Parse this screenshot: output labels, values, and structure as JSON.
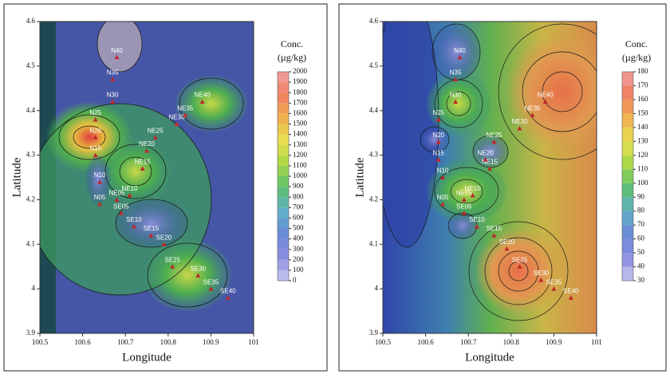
{
  "chart_data": [
    {
      "type": "contour",
      "x_label": "Longitude",
      "y_label": "Latitude",
      "xlim": [
        100.5,
        101
      ],
      "ylim": [
        3.9,
        4.6
      ],
      "xticks": [
        100.5,
        100.6,
        100.7,
        100.8,
        100.9,
        101
      ],
      "yticks": [
        3.9,
        4,
        4.1,
        4.2,
        4.3,
        4.4,
        4.5,
        4.6
      ],
      "colorbar_title": [
        "Conc.",
        "(µg/kg)"
      ],
      "clim": [
        0,
        2000
      ],
      "colorbar_ticks": [
        0,
        100,
        200,
        300,
        400,
        500,
        600,
        700,
        800,
        900,
        1000,
        1100,
        1200,
        1300,
        1400,
        1500,
        1600,
        1700,
        1800,
        1900,
        2000
      ],
      "stations": {
        "names": [
          "N40",
          "N35",
          "N30",
          "N25",
          "N20",
          "N15",
          "N10",
          "N05",
          "NE05",
          "SE05",
          "NE10",
          "NE15",
          "NE20",
          "NE25",
          "NE30",
          "NE35",
          "NE40",
          "SE10",
          "SE15",
          "SE20",
          "SE25",
          "SE30",
          "SE35",
          "SE40"
        ],
        "x": [
          100.68,
          100.67,
          100.67,
          100.63,
          100.63,
          100.63,
          100.64,
          100.64,
          100.68,
          100.69,
          100.71,
          100.74,
          100.75,
          100.77,
          100.82,
          100.84,
          100.88,
          100.72,
          100.76,
          100.79,
          100.81,
          100.87,
          100.9,
          100.94
        ],
        "y": [
          4.52,
          4.47,
          4.42,
          4.38,
          4.34,
          4.3,
          4.24,
          4.19,
          4.2,
          4.17,
          4.21,
          4.27,
          4.31,
          4.34,
          4.37,
          4.39,
          4.42,
          4.14,
          4.12,
          4.1,
          4.05,
          4.03,
          4,
          3.98
        ]
      }
    },
    {
      "type": "contour",
      "x_label": "Longitude",
      "y_label": "Latitude",
      "xlim": [
        100.5,
        101
      ],
      "ylim": [
        3.9,
        4.6
      ],
      "xticks": [
        100.5,
        100.6,
        100.7,
        100.8,
        100.9,
        101
      ],
      "yticks": [
        3.9,
        4,
        4.1,
        4.2,
        4.3,
        4.4,
        4.5,
        4.6
      ],
      "colorbar_title": [
        "Conc.",
        "(µg/kg)"
      ],
      "clim": [
        30,
        180
      ],
      "colorbar_ticks": [
        30,
        40,
        50,
        60,
        70,
        80,
        90,
        100,
        110,
        120,
        130,
        140,
        150,
        160,
        170,
        180
      ],
      "stations": {
        "names": [
          "N40",
          "N35",
          "N30",
          "N25",
          "N20",
          "N15",
          "N10",
          "N05",
          "NE05",
          "SE05",
          "NE10",
          "NE15",
          "NE20",
          "NE25",
          "NE30",
          "NE35",
          "NE40",
          "SE10",
          "SE15",
          "SE20",
          "SE25",
          "SE30",
          "SE35",
          "SE40"
        ],
        "x": [
          100.68,
          100.67,
          100.67,
          100.63,
          100.63,
          100.63,
          100.64,
          100.64,
          100.69,
          100.69,
          100.71,
          100.75,
          100.74,
          100.76,
          100.82,
          100.85,
          100.88,
          100.72,
          100.76,
          100.79,
          100.82,
          100.87,
          100.9,
          100.94
        ],
        "y": [
          4.52,
          4.47,
          4.42,
          4.38,
          4.33,
          4.29,
          4.25,
          4.19,
          4.2,
          4.17,
          4.21,
          4.27,
          4.29,
          4.33,
          4.36,
          4.39,
          4.42,
          4.14,
          4.12,
          4.09,
          4.05,
          4.02,
          4,
          3.98
        ]
      }
    }
  ]
}
